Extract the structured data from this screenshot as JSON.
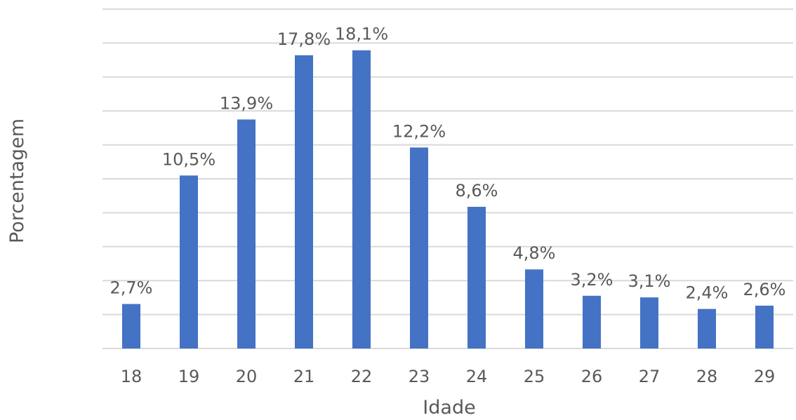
{
  "chart_data": {
    "type": "bar",
    "title": "",
    "xlabel": "Idade",
    "ylabel": "Porcentagem",
    "categories": [
      "18",
      "19",
      "20",
      "21",
      "22",
      "23",
      "24",
      "25",
      "26",
      "27",
      "28",
      "29"
    ],
    "values": [
      2.7,
      10.5,
      13.9,
      17.8,
      18.1,
      12.2,
      8.6,
      4.8,
      3.2,
      3.1,
      2.4,
      2.6
    ],
    "data_labels": [
      "2,7%",
      "10,5%",
      "13,9%",
      "17,8%",
      "18,1%",
      "12,2%",
      "8,6%",
      "4,8%",
      "3,2%",
      "3,1%",
      "2,4%",
      "2,6%"
    ],
    "ylim": [
      0,
      20.6
    ],
    "grid": true,
    "legend": "none",
    "bar_color": "#4472c4",
    "grid_color": "#d9d9d9",
    "text_color": "#595959"
  }
}
